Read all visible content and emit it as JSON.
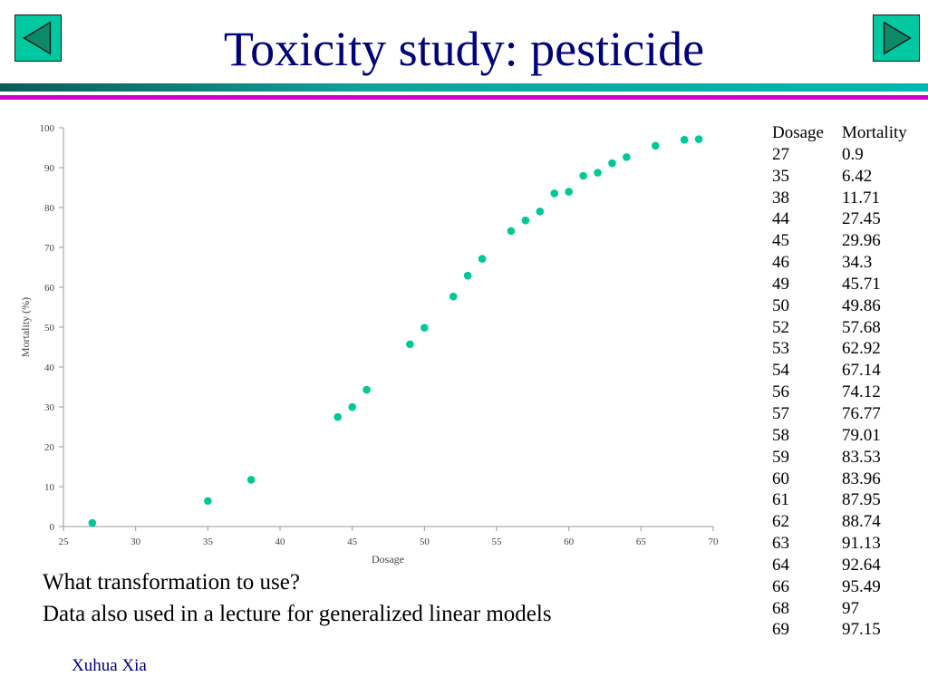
{
  "title": "Toxicity study: pesticide",
  "nav": {
    "prev_icon": "triangle-left-icon",
    "next_icon": "triangle-right-icon"
  },
  "colors": {
    "title": "#00007a",
    "accent": "#00c8a0",
    "marker": "#00c896",
    "band_magenta": "#cc00cc",
    "band_teal": "#11a39b"
  },
  "chart_data": {
    "type": "scatter",
    "xlabel": "Dosage",
    "ylabel": "Mortality (%)",
    "xlim": [
      25,
      70
    ],
    "ylim": [
      0,
      100
    ],
    "xticks": [
      25,
      30,
      35,
      40,
      45,
      50,
      55,
      60,
      65,
      70
    ],
    "yticks": [
      0,
      10,
      20,
      30,
      40,
      50,
      60,
      70,
      80,
      90,
      100
    ],
    "grid": false,
    "x": [
      27,
      35,
      38,
      44,
      45,
      46,
      49,
      50,
      52,
      53,
      54,
      56,
      57,
      58,
      59,
      60,
      61,
      62,
      63,
      64,
      66,
      68,
      69
    ],
    "y": [
      0.9,
      6.42,
      11.71,
      27.45,
      29.96,
      34.3,
      45.71,
      49.86,
      57.68,
      62.92,
      67.14,
      74.12,
      76.77,
      79.01,
      83.53,
      83.96,
      87.95,
      88.74,
      91.13,
      92.64,
      95.49,
      97,
      97.15
    ]
  },
  "table": {
    "headers": [
      "Dosage",
      "Mortality"
    ],
    "rows": [
      [
        "27",
        "0.9"
      ],
      [
        "35",
        "6.42"
      ],
      [
        "38",
        "11.71"
      ],
      [
        "44",
        "27.45"
      ],
      [
        "45",
        "29.96"
      ],
      [
        "46",
        "34.3"
      ],
      [
        "49",
        "45.71"
      ],
      [
        "50",
        "49.86"
      ],
      [
        "52",
        "57.68"
      ],
      [
        "53",
        "62.92"
      ],
      [
        "54",
        "67.14"
      ],
      [
        "56",
        "74.12"
      ],
      [
        "57",
        "76.77"
      ],
      [
        "58",
        "79.01"
      ],
      [
        "59",
        "83.53"
      ],
      [
        "60",
        "83.96"
      ],
      [
        "61",
        "87.95"
      ],
      [
        "62",
        "88.74"
      ],
      [
        "63",
        "91.13"
      ],
      [
        "64",
        "92.64"
      ],
      [
        "66",
        "95.49"
      ],
      [
        "68",
        "97"
      ],
      [
        "69",
        "97.15"
      ]
    ]
  },
  "notes": [
    "What transformation to use?",
    "Data also used in a lecture for generalized linear models"
  ],
  "author": "Xuhua Xia"
}
